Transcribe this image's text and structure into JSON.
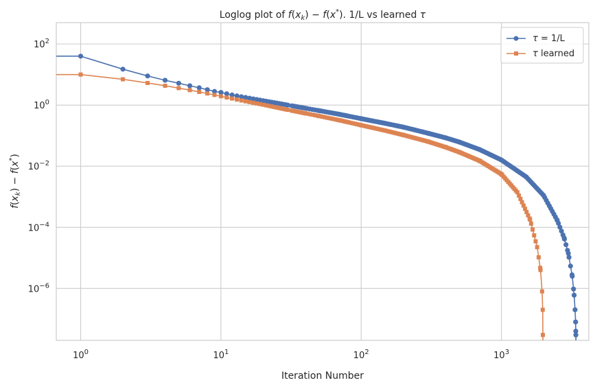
{
  "chart_data": {
    "type": "line",
    "title": "Loglog plot of f(x_k) − f(x*). 1/L vs learned τ",
    "title_parts": {
      "prefix": "Loglog plot of ",
      "f1": "f",
      "x1": "x",
      "k1": "k",
      "minus": " − ",
      "f2": "f",
      "x2": "x",
      "star": "*",
      "suffix": ". 1/L vs learned ",
      "tau": "τ"
    },
    "xlabel": "Iteration Number",
    "ylabel": "f(x_k) − f(x*)",
    "ylabel_parts": {
      "f1": "f",
      "x1": "x",
      "k1": "k",
      "minus": " − ",
      "f2": "f",
      "x2": "x",
      "star": "*"
    },
    "x_scale": "log",
    "y_scale": "log",
    "xlim": [
      0.67,
      4200
    ],
    "ylim": [
      2e-08,
      500
    ],
    "grid": true,
    "legend_position": "top-right",
    "x_ticks": [
      {
        "value": 1,
        "base": "10",
        "exp": "0"
      },
      {
        "value": 10,
        "base": "10",
        "exp": "1"
      },
      {
        "value": 100,
        "base": "10",
        "exp": "2"
      },
      {
        "value": 1000,
        "base": "10",
        "exp": "3"
      }
    ],
    "y_ticks": [
      {
        "value": 100,
        "base": "10",
        "exp": "2"
      },
      {
        "value": 1,
        "base": "10",
        "exp": "0"
      },
      {
        "value": 0.01,
        "base": "10",
        "exp": "−2"
      },
      {
        "value": 0.0001,
        "base": "10",
        "exp": "−4"
      },
      {
        "value": 1e-06,
        "base": "10",
        "exp": "−6"
      }
    ],
    "series": [
      {
        "name": "τ = 1/L",
        "legend_symbol": "τ",
        "legend_rest": " = 1/L",
        "color": "#4c72b0",
        "marker": "circle",
        "x0": 0,
        "y0": 40,
        "x": [
          1,
          2,
          3,
          4,
          5,
          6,
          7,
          8,
          9,
          10,
          11,
          12,
          13,
          14,
          15,
          20,
          30,
          50,
          70,
          100,
          150,
          200,
          300,
          400,
          500,
          700,
          1000,
          1500,
          2000,
          2500,
          2800,
          3000,
          3200,
          3300,
          3350,
          3380,
          3390,
          3395
        ],
        "y": [
          40,
          15,
          9,
          6.5,
          5.2,
          4.3,
          3.7,
          3.2,
          2.8,
          2.6,
          2.35,
          2.15,
          2.0,
          1.88,
          1.78,
          1.4,
          1.0,
          0.66,
          0.5,
          0.36,
          0.25,
          0.19,
          0.12,
          0.085,
          0.062,
          0.035,
          0.016,
          0.0045,
          0.0011,
          0.00017,
          4.5e-05,
          1.4e-05,
          2.5e-06,
          6e-07,
          2e-07,
          8e-08,
          4e-08,
          3e-08
        ]
      },
      {
        "name": "τ learned",
        "legend_symbol": "τ",
        "legend_rest": " learned",
        "color": "#dd8452",
        "marker": "square",
        "x0": 0,
        "y0": 10,
        "x": [
          1,
          2,
          3,
          4,
          5,
          6,
          7,
          8,
          9,
          10,
          11,
          12,
          13,
          14,
          15,
          20,
          30,
          50,
          70,
          100,
          150,
          200,
          300,
          400,
          500,
          700,
          1000,
          1300,
          1600,
          1800,
          1900,
          1950,
          1970,
          1975
        ],
        "y": [
          10,
          7,
          5.3,
          4.3,
          3.6,
          3.1,
          2.7,
          2.4,
          2.15,
          1.95,
          1.78,
          1.64,
          1.52,
          1.42,
          1.33,
          1.03,
          0.7,
          0.44,
          0.32,
          0.22,
          0.145,
          0.105,
          0.064,
          0.042,
          0.029,
          0.015,
          0.0055,
          0.0014,
          0.00018,
          2.2e-05,
          4e-06,
          8e-07,
          2e-07,
          3e-08
        ]
      }
    ]
  }
}
